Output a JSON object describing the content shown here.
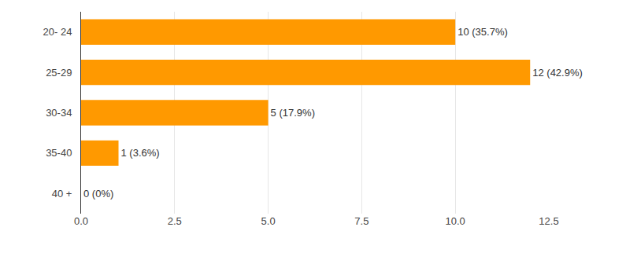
{
  "chart_data": {
    "type": "bar",
    "orientation": "horizontal",
    "categories": [
      "20- 24",
      "25-29",
      "30-34",
      "35-40",
      "40 +"
    ],
    "values": [
      10,
      12,
      5,
      1,
      0
    ],
    "value_labels": [
      "10 (35.7%)",
      "12 (42.9%)",
      "5 (17.9%)",
      "1 (3.6%)",
      "0 (0%)"
    ],
    "data_labels": true,
    "color": "#ff9900",
    "xlim": [
      0,
      12.5
    ],
    "xticks": [
      {
        "value": 0,
        "label": "0.0"
      },
      2.5,
      {
        "value": 5,
        "label": "5.0"
      },
      7.5,
      {
        "value": 10,
        "label": "10.0"
      },
      12.5
    ],
    "grid": true
  }
}
